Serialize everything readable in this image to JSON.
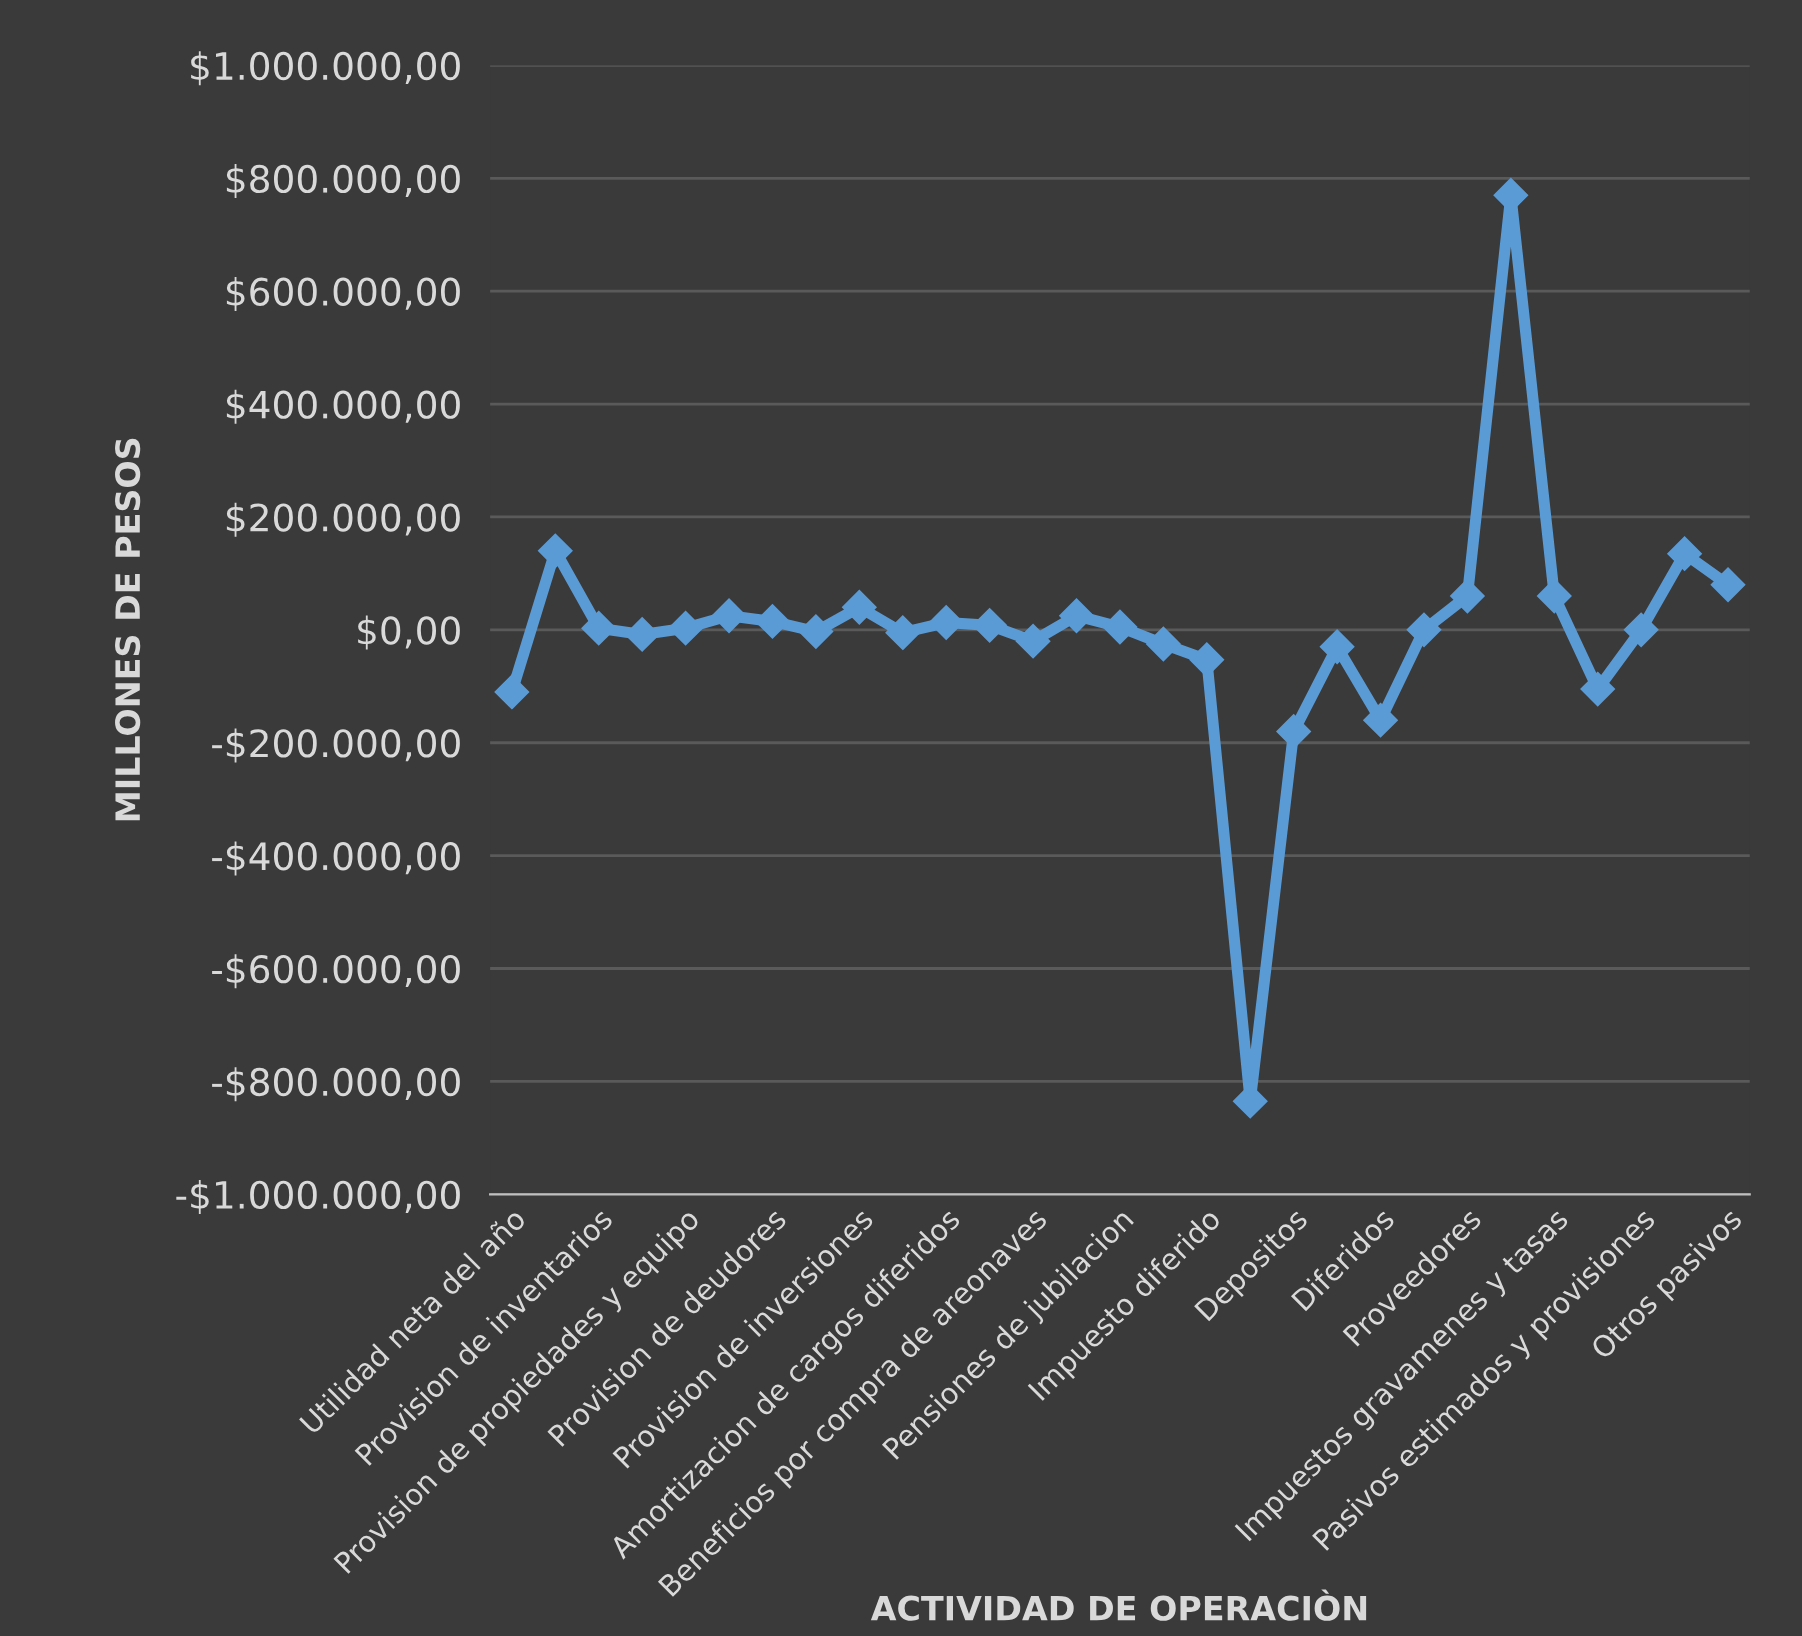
{
  "chart_data": {
    "type": "line",
    "categories": [
      "Utilidad neta del año",
      null,
      "Provision de inventarios",
      null,
      "Provision de propiedades y equipo",
      null,
      "Provision de deudores",
      null,
      "Provision de inversiones",
      null,
      "Amortizacion de cargos diferidos",
      null,
      "Beneficios por compra de areonaves",
      null,
      "Pensiones de jubilacion",
      null,
      "Impuesto diferido",
      null,
      "Depositos",
      null,
      "Diferidos",
      null,
      "Proveedores",
      null,
      "Impuestos gravamenes y tasas",
      null,
      "Pasivos estimados y provisiones",
      null,
      "Otros pasivos"
    ],
    "series": [
      {
        "color": "#5b9bd5",
        "values": [
          -110000,
          140000,
          3000,
          -8000,
          3000,
          25000,
          15000,
          -3000,
          40000,
          -5000,
          13000,
          8000,
          -20000,
          25000,
          5000,
          -25000,
          -53000,
          -835000,
          -180000,
          -30000,
          -160000,
          0,
          60000,
          770000,
          60000,
          -105000,
          0,
          135000,
          80000
        ]
      }
    ],
    "xlabel": "ACTIVIDAD DE OPERACIÒN",
    "ylabel": "MILLONES DE PESOS",
    "ylim": [
      -1000000,
      1000000
    ],
    "yticks": [
      {
        "value": -1000000,
        "label": "-$1.000.000,00"
      },
      {
        "value": -800000,
        "label": "-$800.000,00"
      },
      {
        "value": -600000,
        "label": "-$600.000,00"
      },
      {
        "value": -400000,
        "label": "-$400.000,00"
      },
      {
        "value": -200000,
        "label": "-$200.000,00"
      },
      {
        "value": 0,
        "label": "$0,00"
      },
      {
        "value": 200000,
        "label": "$200.000,00"
      },
      {
        "value": 400000,
        "label": "$400.000,00"
      },
      {
        "value": 600000,
        "label": "$600.000,00"
      },
      {
        "value": 800000,
        "label": "$800.000,00"
      },
      {
        "value": 1000000,
        "label": "$1.000.000,00"
      }
    ],
    "grid": "y",
    "marker": "diamond",
    "legend": false
  }
}
